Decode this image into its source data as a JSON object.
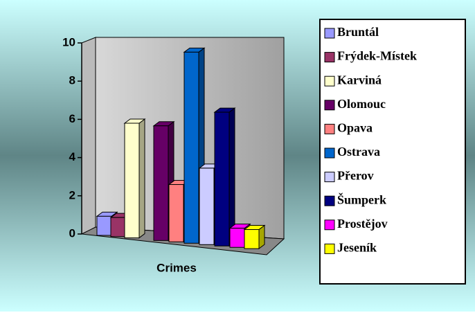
{
  "chart_data": {
    "type": "bar",
    "categories": [
      "Crimes"
    ],
    "series": [
      {
        "name": "Bruntál",
        "color": "#9999ff",
        "values": [
          1
        ]
      },
      {
        "name": "Frýdek-Místek",
        "color": "#993366",
        "values": [
          1
        ]
      },
      {
        "name": "Karviná",
        "color": "#ffffcc",
        "values": [
          6
        ]
      },
      {
        "name": "Olomouc",
        "color": "#660066",
        "values": [
          6
        ]
      },
      {
        "name": "Opava",
        "color": "#ff8080",
        "values": [
          3
        ]
      },
      {
        "name": "Ostrava",
        "color": "#0066cc",
        "values": [
          10
        ]
      },
      {
        "name": "Přerov",
        "color": "#ccccff",
        "values": [
          4
        ]
      },
      {
        "name": "Šumperk",
        "color": "#000080",
        "values": [
          7
        ]
      },
      {
        "name": "Prostějov",
        "color": "#ff00ff",
        "values": [
          1
        ]
      },
      {
        "name": "Jeseník",
        "color": "#ffff00",
        "values": [
          1
        ]
      }
    ],
    "ylim": [
      0,
      10
    ],
    "yticks": [
      0,
      2,
      4,
      6,
      8,
      10
    ],
    "legend": "right"
  }
}
